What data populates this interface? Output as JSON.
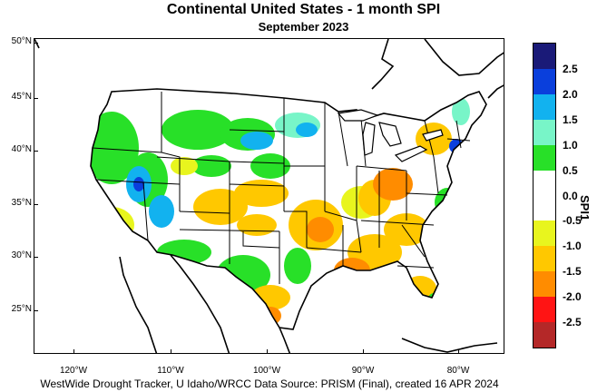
{
  "header": {
    "title": "Continental United States - 1 month SPI",
    "subtitle": "September 2023"
  },
  "axes": {
    "lat_labels": [
      "50°N",
      "45°N",
      "40°N",
      "35°N",
      "30°N",
      "25°N"
    ],
    "lon_labels": [
      "120°W",
      "110°W",
      "100°W",
      "90°W",
      "80°W"
    ]
  },
  "legend": {
    "title": "SPI1",
    "ticks": [
      "2.5",
      "2.0",
      "1.5",
      "1.0",
      "0.5",
      "0.0",
      "-0.5",
      "-1.0",
      "-1.5",
      "-2.0",
      "-2.5"
    ],
    "colors": [
      "#1a1a78",
      "#0a3fdc",
      "#12b2ef",
      "#78f5c8",
      "#28e028",
      "#ffffff",
      "#ffffff",
      "#e8f51e",
      "#ffc800",
      "#ff8c00",
      "#ff1414",
      "#b42828"
    ]
  },
  "credit": "WestWide Drought Tracker, U Idaho/WRCC Data Source: PRISM (Final), created 16 APR 2024"
}
